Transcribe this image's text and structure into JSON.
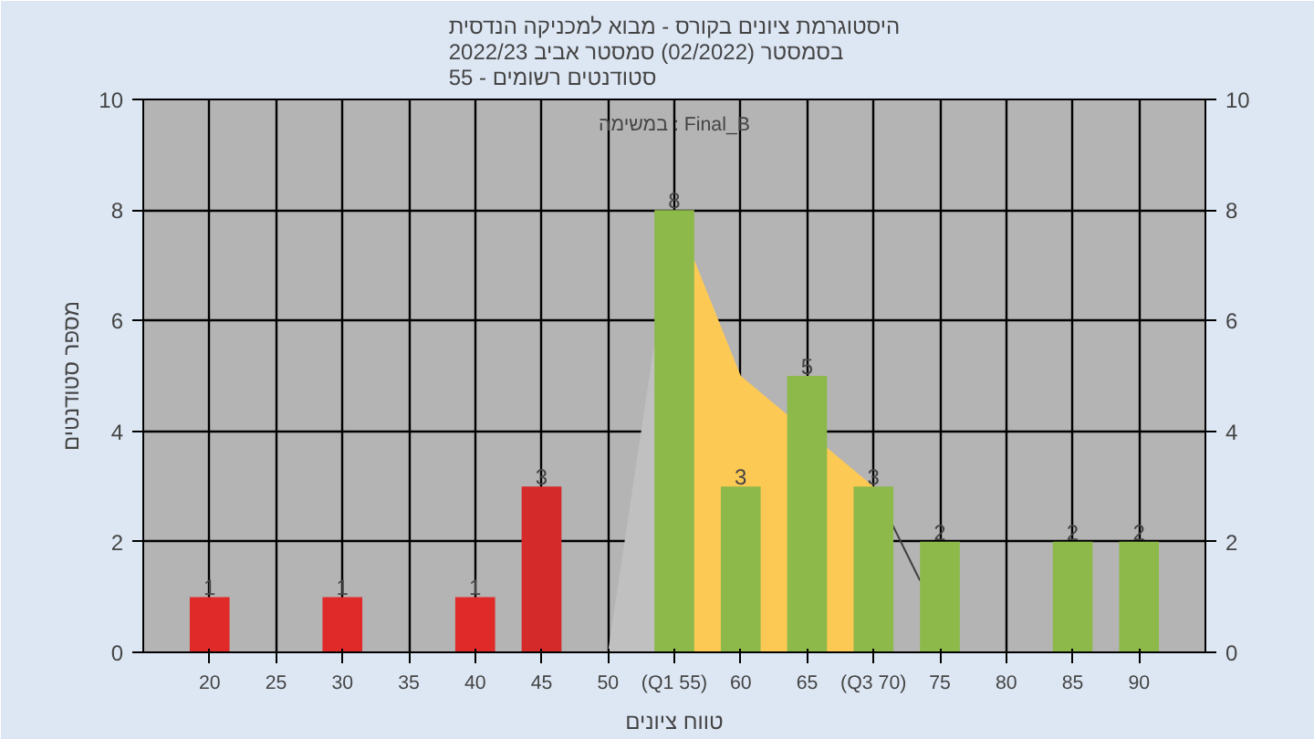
{
  "chart_data": {
    "type": "bar",
    "title": "היסטוגרמת ציונים בקורס - מבוא למכניקה הנדסית\nבסמסטר  (02/2022)  סמסטר אביב 2022/23\nסטודנטים רשומים - 55",
    "xlabel": "טווח ציונים",
    "ylabel": "מספר סטודנטים",
    "annotations": [
      "במשימה : Final_B"
    ],
    "x": [
      20,
      25,
      30,
      35,
      40,
      45,
      50,
      55,
      60,
      65,
      70,
      75,
      80,
      85,
      90
    ],
    "series": [
      {
        "type": "area",
        "color": "#c0c0c0",
        "x": [
          50,
          55
        ],
        "values": [
          0,
          8
        ]
      },
      {
        "type": "area",
        "color": "#fdc955",
        "x": [
          55,
          60,
          70
        ],
        "values": [
          8,
          5,
          3
        ]
      },
      {
        "type": "line",
        "color": "#404040",
        "x": [
          70,
          73.5
        ],
        "values": [
          3,
          1.3
        ]
      },
      {
        "colors": [
          "#e02a2a",
          "#e02a2a",
          "#e02a2a",
          "#e02a2a",
          "#e02a2a",
          "#d52a2a",
          "#8db84a",
          "#8db84a",
          "#8db84a",
          "#8db84a",
          "#8db84a",
          "#8db84a",
          "#8db84a",
          "#8db84a",
          "#8db84a"
        ],
        "values": [
          1,
          0,
          1,
          0,
          1,
          3,
          0,
          8,
          3,
          5,
          3,
          2,
          0,
          2,
          2
        ],
        "value_labels": [
          "1",
          null,
          "1",
          null,
          "1",
          "3",
          null,
          "8",
          "3",
          "5",
          "3",
          "2",
          null,
          "2",
          "2"
        ]
      }
    ],
    "xlim": [
      15,
      95
    ],
    "xticks": [
      20,
      25,
      30,
      35,
      40,
      45,
      50,
      {
        "value": 55,
        "label": "(Q1 55)"
      },
      60,
      65,
      {
        "value": 70,
        "label": "(Q3 70)"
      },
      75,
      80,
      85,
      90
    ],
    "ylim": [
      0,
      10
    ],
    "yticks": [
      0,
      2,
      4,
      6,
      8,
      10
    ],
    "y2lim": [
      0,
      10
    ],
    "y2ticks": [
      0,
      2,
      4,
      6,
      8,
      10
    ],
    "grid": true
  }
}
